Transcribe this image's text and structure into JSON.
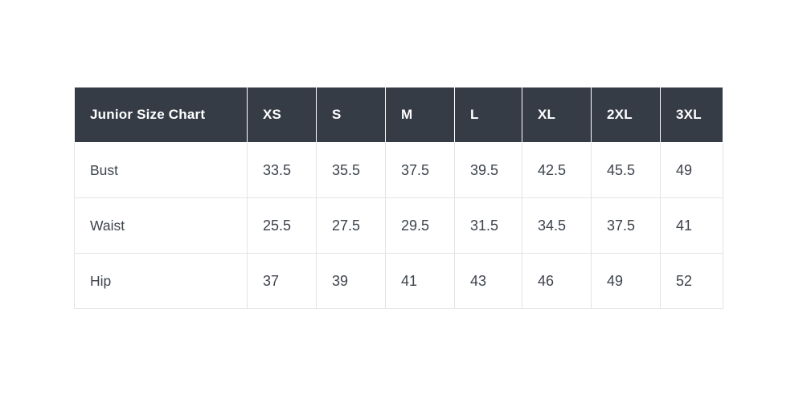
{
  "chart_data": {
    "type": "table",
    "title": "Junior Size Chart",
    "columns": [
      "XS",
      "S",
      "M",
      "L",
      "XL",
      "2XL",
      "3XL"
    ],
    "rows": [
      {
        "label": "Bust",
        "values": [
          "33.5",
          "35.5",
          "37.5",
          "39.5",
          "42.5",
          "45.5",
          "49"
        ]
      },
      {
        "label": "Waist",
        "values": [
          "25.5",
          "27.5",
          "29.5",
          "31.5",
          "34.5",
          "37.5",
          "41"
        ]
      },
      {
        "label": "Hip",
        "values": [
          "37",
          "39",
          "41",
          "43",
          "46",
          "49",
          "52"
        ]
      }
    ],
    "layout": {
      "grid": true,
      "header_position": "top-row-and-left-column"
    }
  },
  "colors": {
    "page_background": "#ffffff",
    "header_background": "#363c46",
    "header_text": "#ffffff",
    "body_text": "#3d434c",
    "border": "#e2e3e5"
  }
}
